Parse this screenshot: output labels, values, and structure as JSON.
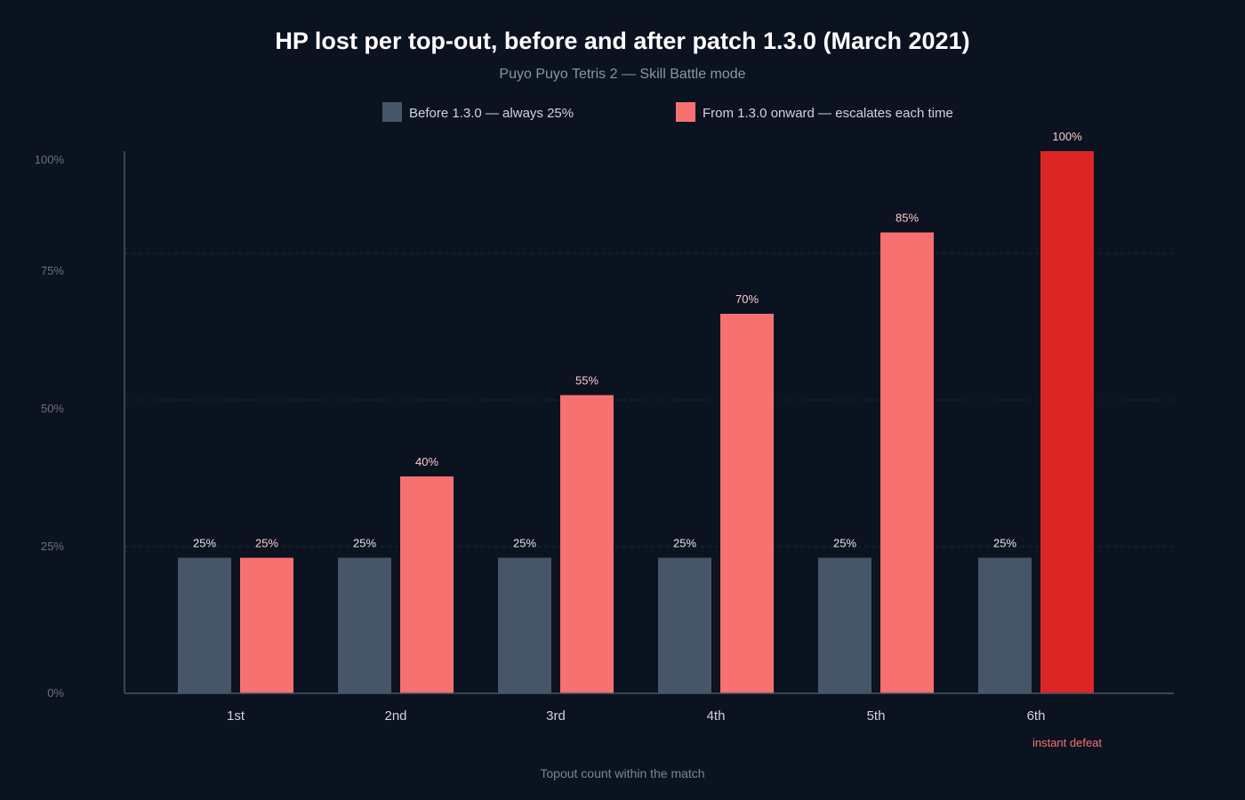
{
  "colors": {
    "background": "#0b1220",
    "before": "#475569",
    "after": "#f87171",
    "after_highlight": "#dc2626",
    "axis": "#4b5563",
    "grid": "#1f2937"
  },
  "chart_data": {
    "type": "bar",
    "title": "HP lost per top-out, before and after patch 1.3.0 (March 2021)",
    "subtitle": "Puyo Puyo Tetris 2 — Skill Battle mode",
    "xlabel": "Topout count within the match",
    "ylabel": "",
    "categories": [
      "1st",
      "2nd",
      "3rd",
      "4th",
      "5th",
      "6th"
    ],
    "series": [
      {
        "name": "Before 1.3.0 — always 25%",
        "values": [
          25,
          25,
          25,
          25,
          25,
          25
        ],
        "value_labels": [
          "25%",
          "25%",
          "25%",
          "25%",
          "25%",
          "25%"
        ]
      },
      {
        "name": "From 1.3.0 onward — escalates each time",
        "values": [
          25,
          40,
          55,
          70,
          85,
          100
        ],
        "value_labels": [
          "25%",
          "40%",
          "55%",
          "70%",
          "85%",
          "100%"
        ]
      }
    ],
    "ylim": [
      0,
      100
    ],
    "yticks": [
      0,
      25,
      50,
      75,
      100
    ],
    "ytick_labels": [
      "0%",
      "25%",
      "50%",
      "75%",
      "100%"
    ],
    "grid": true,
    "legend_position": "top-center",
    "annotations": [
      {
        "category": "6th",
        "text": "instant defeat"
      }
    ]
  }
}
